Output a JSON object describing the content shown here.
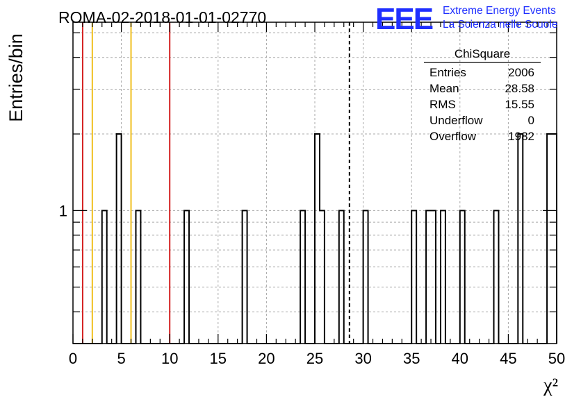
{
  "chart_data": {
    "type": "histogram",
    "title": "ROMA-02-2018-01-01-02770",
    "xlabel": "χ²",
    "ylabel": "Entries/bin",
    "xlim": [
      0,
      50
    ],
    "y_scale": "log",
    "ylim": [
      0.3,
      5.5
    ],
    "x_ticks": [
      "0",
      "5",
      "10",
      "15",
      "20",
      "25",
      "30",
      "35",
      "40",
      "45",
      "50"
    ],
    "y_ticks": [
      "1"
    ],
    "grid": true,
    "bin_width": 0.5,
    "bins": [
      {
        "x": 3.0,
        "count": 1
      },
      {
        "x": 4.5,
        "count": 2
      },
      {
        "x": 6.5,
        "count": 1
      },
      {
        "x": 11.5,
        "count": 1
      },
      {
        "x": 17.5,
        "count": 1
      },
      {
        "x": 23.5,
        "count": 1
      },
      {
        "x": 25.0,
        "count": 2
      },
      {
        "x": 25.5,
        "count": 1
      },
      {
        "x": 27.5,
        "count": 1
      },
      {
        "x": 30.0,
        "count": 1
      },
      {
        "x": 35.0,
        "count": 1
      },
      {
        "x": 36.5,
        "count": 1
      },
      {
        "x": 37.0,
        "count": 1
      },
      {
        "x": 38.0,
        "count": 1
      },
      {
        "x": 40.0,
        "count": 1
      },
      {
        "x": 43.5,
        "count": 1
      },
      {
        "x": 46.0,
        "count": 2
      },
      {
        "x": 49.0,
        "count": 2
      },
      {
        "x": 49.5,
        "count": 2
      }
    ],
    "reference_lines": [
      {
        "x": 1,
        "color": "#d42020",
        "style": "solid"
      },
      {
        "x": 2,
        "color": "#f0c020",
        "style": "solid"
      },
      {
        "x": 6,
        "color": "#f0c020",
        "style": "solid"
      },
      {
        "x": 10,
        "color": "#d42020",
        "style": "solid"
      },
      {
        "x": 28.58,
        "color": "#000000",
        "style": "dashed"
      }
    ],
    "stats_box": {
      "name": "ChiSquare",
      "rows": [
        {
          "label": "Entries",
          "value": "2006"
        },
        {
          "label": "Mean",
          "value": "28.58"
        },
        {
          "label": "RMS",
          "value": "15.55"
        },
        {
          "label": "Underflow",
          "value": "0"
        },
        {
          "label": "Overflow",
          "value": "1982"
        }
      ]
    }
  },
  "logo": {
    "mark": "EEE",
    "line1": "Extreme Energy Events",
    "line2": "La Scienza nelle Scuole",
    "color": "#1f2fff"
  }
}
